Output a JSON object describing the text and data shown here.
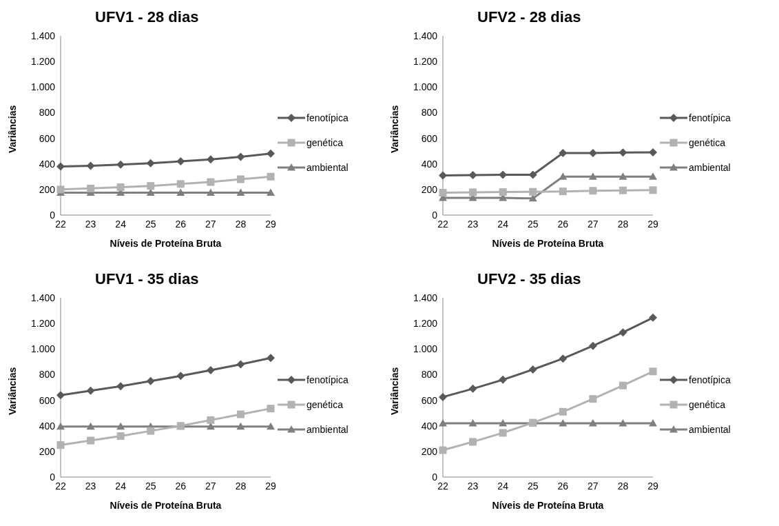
{
  "chart_data": [
    {
      "type": "line",
      "title": "UFV1 - 28 dias",
      "xlabel": "Níveis de Proteína Bruta",
      "ylabel": "Variâncias",
      "categories": [
        "22",
        "23",
        "24",
        "25",
        "26",
        "27",
        "28",
        "29"
      ],
      "ylim": [
        0,
        1400
      ],
      "yticks": [
        0,
        200,
        400,
        600,
        800,
        {
          "value": 1000,
          "label": "1.000"
        },
        {
          "value": 1200,
          "label": "1.200"
        },
        {
          "value": 1400,
          "label": "1.400"
        }
      ],
      "grid": false,
      "legend": "right",
      "series": [
        {
          "name": "fenotípica",
          "color": "#595959",
          "marker": "diamond",
          "values": [
            380,
            385,
            395,
            405,
            420,
            435,
            455,
            480
          ]
        },
        {
          "name": "genética",
          "color": "#b2b2b2",
          "marker": "square",
          "values": [
            200,
            208,
            218,
            228,
            243,
            258,
            280,
            300
          ]
        },
        {
          "name": "ambiental",
          "color": "#7f7f7f",
          "marker": "triangle",
          "values": [
            175,
            175,
            175,
            175,
            175,
            175,
            175,
            175
          ]
        }
      ]
    },
    {
      "type": "line",
      "title": "UFV2 - 28 dias",
      "xlabel": "Níveis de Proteína Bruta",
      "ylabel": "Variâncias",
      "categories": [
        "22",
        "23",
        "24",
        "25",
        "26",
        "27",
        "28",
        "29"
      ],
      "ylim": [
        0,
        1400
      ],
      "yticks": [
        0,
        200,
        400,
        600,
        800,
        {
          "value": 1000,
          "label": "1.000"
        },
        {
          "value": 1200,
          "label": "1.200"
        },
        {
          "value": 1400,
          "label": "1.400"
        }
      ],
      "grid": false,
      "legend": "right",
      "series": [
        {
          "name": "fenotípica",
          "color": "#595959",
          "marker": "diamond",
          "values": [
            310,
            312,
            315,
            315,
            485,
            485,
            488,
            490
          ]
        },
        {
          "name": "genética",
          "color": "#b2b2b2",
          "marker": "square",
          "values": [
            175,
            178,
            180,
            182,
            185,
            190,
            193,
            195
          ]
        },
        {
          "name": "ambiental",
          "color": "#7f7f7f",
          "marker": "triangle",
          "values": [
            135,
            135,
            135,
            130,
            300,
            300,
            300,
            300
          ]
        }
      ]
    },
    {
      "type": "line",
      "title": "UFV1 - 35 dias",
      "xlabel": "Níveis de Proteína Bruta",
      "ylabel": "Variâncias",
      "categories": [
        "22",
        "23",
        "24",
        "25",
        "26",
        "27",
        "28",
        "29"
      ],
      "ylim": [
        0,
        1400
      ],
      "yticks": [
        0,
        200,
        400,
        600,
        800,
        {
          "value": 1000,
          "label": "1.000"
        },
        {
          "value": 1200,
          "label": "1.200"
        },
        {
          "value": 1400,
          "label": "1.400"
        }
      ],
      "grid": false,
      "legend": "right",
      "series": [
        {
          "name": "fenotípica",
          "color": "#595959",
          "marker": "diamond",
          "values": [
            640,
            675,
            710,
            750,
            790,
            835,
            880,
            930
          ]
        },
        {
          "name": "genética",
          "color": "#b2b2b2",
          "marker": "square",
          "values": [
            250,
            285,
            320,
            360,
            400,
            445,
            490,
            535
          ]
        },
        {
          "name": "ambiental",
          "color": "#7f7f7f",
          "marker": "triangle",
          "values": [
            395,
            395,
            395,
            395,
            395,
            395,
            395,
            395
          ]
        }
      ]
    },
    {
      "type": "line",
      "title": "UFV2 - 35 dias",
      "xlabel": "Níveis de Proteína Bruta",
      "ylabel": "Variâncias",
      "categories": [
        "22",
        "23",
        "24",
        "25",
        "26",
        "27",
        "28",
        "29"
      ],
      "ylim": [
        0,
        1400
      ],
      "yticks": [
        0,
        200,
        400,
        600,
        800,
        {
          "value": 1000,
          "label": "1.000"
        },
        {
          "value": 1200,
          "label": "1.200"
        },
        {
          "value": 1400,
          "label": "1.400"
        }
      ],
      "grid": false,
      "legend": "right",
      "series": [
        {
          "name": "fenotípica",
          "color": "#595959",
          "marker": "diamond",
          "values": [
            625,
            690,
            760,
            840,
            925,
            1025,
            1130,
            1245
          ]
        },
        {
          "name": "genética",
          "color": "#b2b2b2",
          "marker": "square",
          "values": [
            210,
            275,
            345,
            425,
            510,
            610,
            715,
            825
          ]
        },
        {
          "name": "ambiental",
          "color": "#7f7f7f",
          "marker": "triangle",
          "values": [
            420,
            420,
            420,
            420,
            420,
            420,
            420,
            420
          ]
        }
      ]
    }
  ]
}
